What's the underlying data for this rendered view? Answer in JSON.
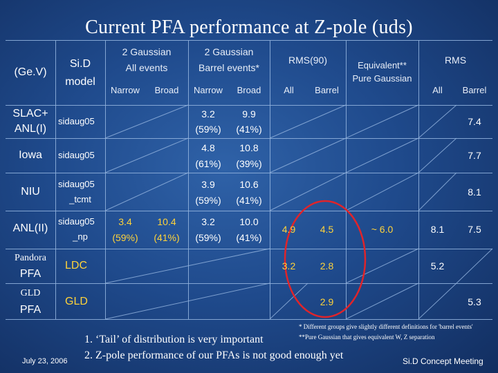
{
  "title": "Current PFA performance at Z-pole (uds)",
  "header": {
    "unit": "(Ge.V)",
    "model_line1": "Si.D",
    "model_line2": "model",
    "g_all_line1": "2 Gaussian",
    "g_all_line2": "All events",
    "g_barrel_line1": "2 Gaussian",
    "g_barrel_line2": "Barrel events*",
    "rms90": "RMS(90)",
    "equiv_line1": "Equivalent**",
    "equiv_line2": "Pure Gaussian",
    "rms": "RMS",
    "narrow": "Narrow",
    "broad": "Broad",
    "all": "All",
    "barrel": "Barrel"
  },
  "rows": [
    {
      "label1": "SLAC+",
      "label2": "ANL(I)",
      "model1": "sidaug05",
      "model2": "",
      "g_all_narrow": "",
      "g_all_broad": "",
      "g_bar_narrow1": "3.2",
      "g_bar_narrow2": "(59%)",
      "g_bar_broad1": "9.9",
      "g_bar_broad2": "(41%)",
      "rms90_all": "",
      "rms90_barrel": "",
      "equiv": "",
      "rms_all": "",
      "rms_barrel": "7.4"
    },
    {
      "label1": "Iowa",
      "label2": "",
      "model1": "sidaug05",
      "model2": "",
      "g_all_narrow": "",
      "g_all_broad": "",
      "g_bar_narrow1": "4.8",
      "g_bar_narrow2": "(61%)",
      "g_bar_broad1": "10.8",
      "g_bar_broad2": "(39%)",
      "rms90_all": "",
      "rms90_barrel": "",
      "equiv": "",
      "rms_all": "",
      "rms_barrel": "7.7"
    },
    {
      "label1": "NIU",
      "label2": "",
      "model1": "sidaug05",
      "model2": "_tcmt",
      "g_all_narrow": "",
      "g_all_broad": "",
      "g_bar_narrow1": "3.9",
      "g_bar_narrow2": "(59%)",
      "g_bar_broad1": "10.6",
      "g_bar_broad2": "(41%)",
      "rms90_all": "",
      "rms90_barrel": "",
      "equiv": "",
      "rms_all": "",
      "rms_barrel": "8.1"
    },
    {
      "label1": "ANL(II)",
      "label2": "",
      "model1": "sidaug05",
      "model2": "_np",
      "g_all_narrow1": "3.4",
      "g_all_narrow2": "(59%)",
      "g_all_broad1": "10.4",
      "g_all_broad2": "(41%)",
      "g_bar_narrow1": "3.2",
      "g_bar_narrow2": "(59%)",
      "g_bar_broad1": "10.0",
      "g_bar_broad2": "(41%)",
      "rms90_all": "4.9",
      "rms90_barrel": "4.5",
      "equiv": "~ 6.0",
      "rms_all": "8.1",
      "rms_barrel": "7.5"
    },
    {
      "label1": "Pandora",
      "label2": "PFA",
      "model1": "LDC",
      "model2": "",
      "rms90_all": "3.2",
      "rms90_barrel": "2.8",
      "equiv": "",
      "rms_all": "5.2",
      "rms_barrel": ""
    },
    {
      "label1": "GLD",
      "label2": "PFA",
      "model1": "GLD",
      "model2": "",
      "rms90_all": "",
      "rms90_barrel": "2.9",
      "equiv": "",
      "rms_all": "",
      "rms_barrel": "5.3"
    }
  ],
  "footnotes": {
    "note1": "* Different groups give slightly different definitions for 'barrel events'",
    "note2": "**Pure Gaussian that gives equivalent W, Z separation",
    "point1": "1.  ‘Tail’ of distribution is very important",
    "point2": "2.  Z-pole performance of our PFAs is not good enough yet",
    "date": "July 23, 2006",
    "meeting": "Si.D Concept Meeting"
  },
  "colors": {
    "background": "#1f4a8c",
    "grid": "#8fb0dc",
    "highlight_yellow": "#ffd33a",
    "ellipse_red": "#e0242a"
  }
}
